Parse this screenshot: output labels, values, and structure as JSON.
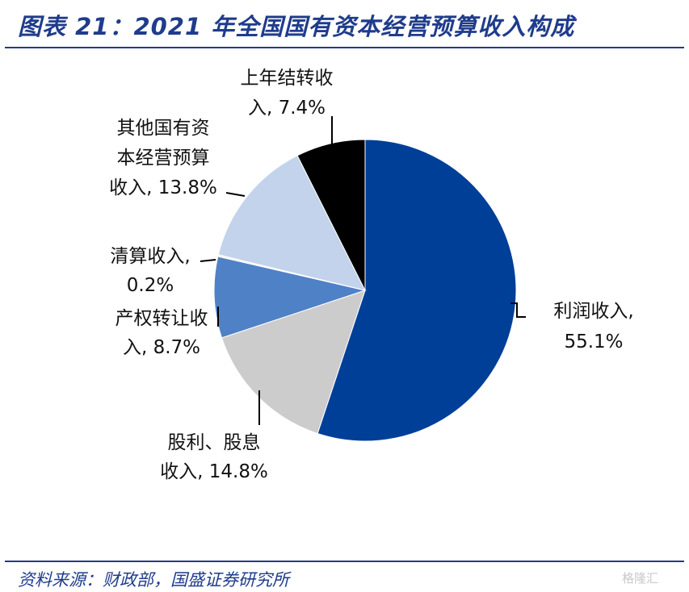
{
  "title": "图表 21：2021 年全国国有资本经营预算收入构成",
  "source": "资料来源：财政部，国盛证券研究所",
  "watermark": "格隆汇",
  "chart_data": {
    "type": "pie",
    "title": "2021 年全国国有资本经营预算收入构成",
    "slices": [
      {
        "label_lines": [
          "利润收入,",
          "55.1%"
        ],
        "value": 55.1,
        "color": "#003f98"
      },
      {
        "label_lines": [
          "股利、股息",
          "收入, 14.8%"
        ],
        "value": 14.8,
        "color": "#cccccc"
      },
      {
        "label_lines": [
          "产权转让收",
          "入, 8.7%"
        ],
        "value": 8.7,
        "color": "#4f81c7"
      },
      {
        "label_lines": [
          "清算收入,",
          "0.2%"
        ],
        "value": 0.2,
        "color": "#f2f2f2"
      },
      {
        "label_lines": [
          "其他国有资",
          "本经营预算",
          "收入, 13.8%"
        ],
        "value": 13.8,
        "color": "#c2d3eb"
      },
      {
        "label_lines": [
          "上年结转收",
          "入, 7.4%"
        ],
        "value": 7.4,
        "color": "#000000"
      }
    ]
  }
}
